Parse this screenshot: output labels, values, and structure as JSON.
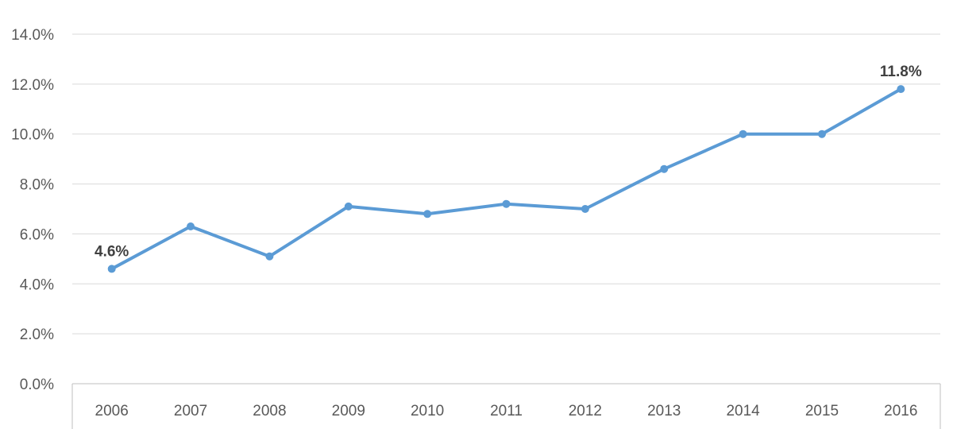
{
  "chart_data": {
    "type": "line",
    "title": "",
    "xlabel": "",
    "ylabel": "",
    "categories": [
      "2006",
      "2007",
      "2008",
      "2009",
      "2010",
      "2011",
      "2012",
      "2013",
      "2014",
      "2015",
      "2016"
    ],
    "series": [
      {
        "values": [
          4.6,
          6.3,
          5.1,
          7.1,
          6.8,
          7.2,
          7.0,
          8.6,
          10.0,
          10.0,
          11.8
        ]
      }
    ],
    "ylim": [
      0,
      14
    ],
    "y_ticks": [
      "0.0%",
      "2.0%",
      "4.0%",
      "6.0%",
      "8.0%",
      "10.0%",
      "12.0%",
      "14.0%"
    ],
    "data_labels": [
      {
        "category": "2006",
        "text": "4.6%"
      },
      {
        "category": "2016",
        "text": "11.8%"
      }
    ],
    "grid": true,
    "legend": "none",
    "colors": {
      "line": "#5b9bd5",
      "grid": "#d9d9d9",
      "axis": "#bfbfbf",
      "text": "#595959",
      "label": "#404040"
    }
  }
}
